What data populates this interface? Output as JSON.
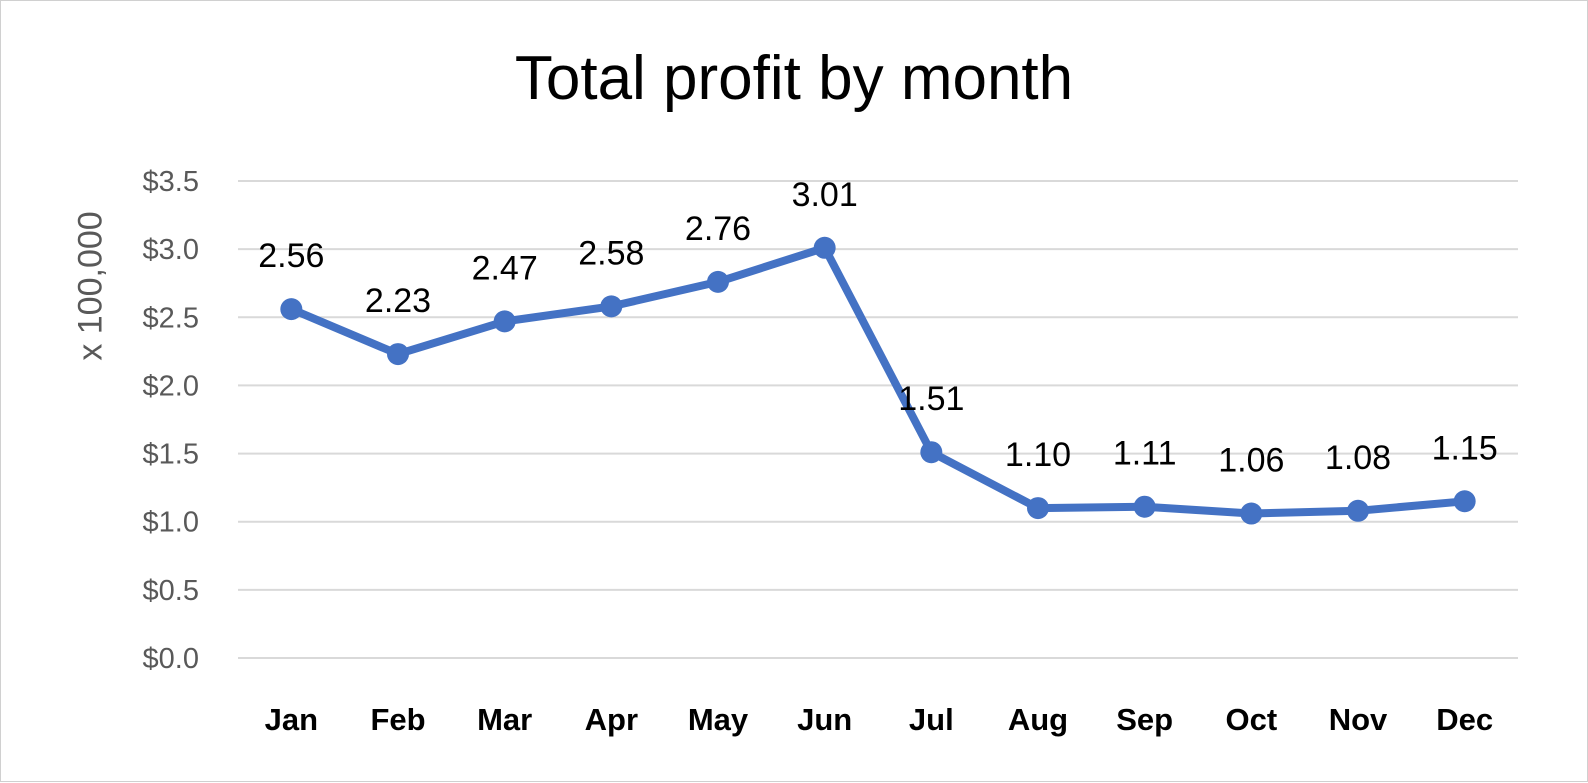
{
  "chart_data": {
    "type": "line",
    "title": "Total profit by month",
    "ylabel": "x 100,000",
    "xlabel": "",
    "categories": [
      "Jan",
      "Feb",
      "Mar",
      "Apr",
      "May",
      "Jun",
      "Jul",
      "Aug",
      "Sep",
      "Oct",
      "Nov",
      "Dec"
    ],
    "series": [
      {
        "values": [
          2.56,
          2.23,
          2.47,
          2.58,
          2.76,
          3.01,
          1.51,
          1.1,
          1.11,
          1.06,
          1.08,
          1.15
        ]
      }
    ],
    "data_labels": [
      "2.56",
      "2.23",
      "2.47",
      "2.58",
      "2.76",
      "3.01",
      "1.51",
      "1.10",
      "1.11",
      "1.06",
      "1.08",
      "1.15"
    ],
    "y_ticks": [
      "$0.0",
      "$0.5",
      "$1.0",
      "$1.5",
      "$2.0",
      "$2.5",
      "$3.0",
      "$3.5"
    ],
    "ylim": [
      0,
      3.5
    ],
    "grid": true,
    "legend": "none",
    "colors": {
      "series": "#4472C4",
      "grid": "#d9d9d9"
    }
  }
}
